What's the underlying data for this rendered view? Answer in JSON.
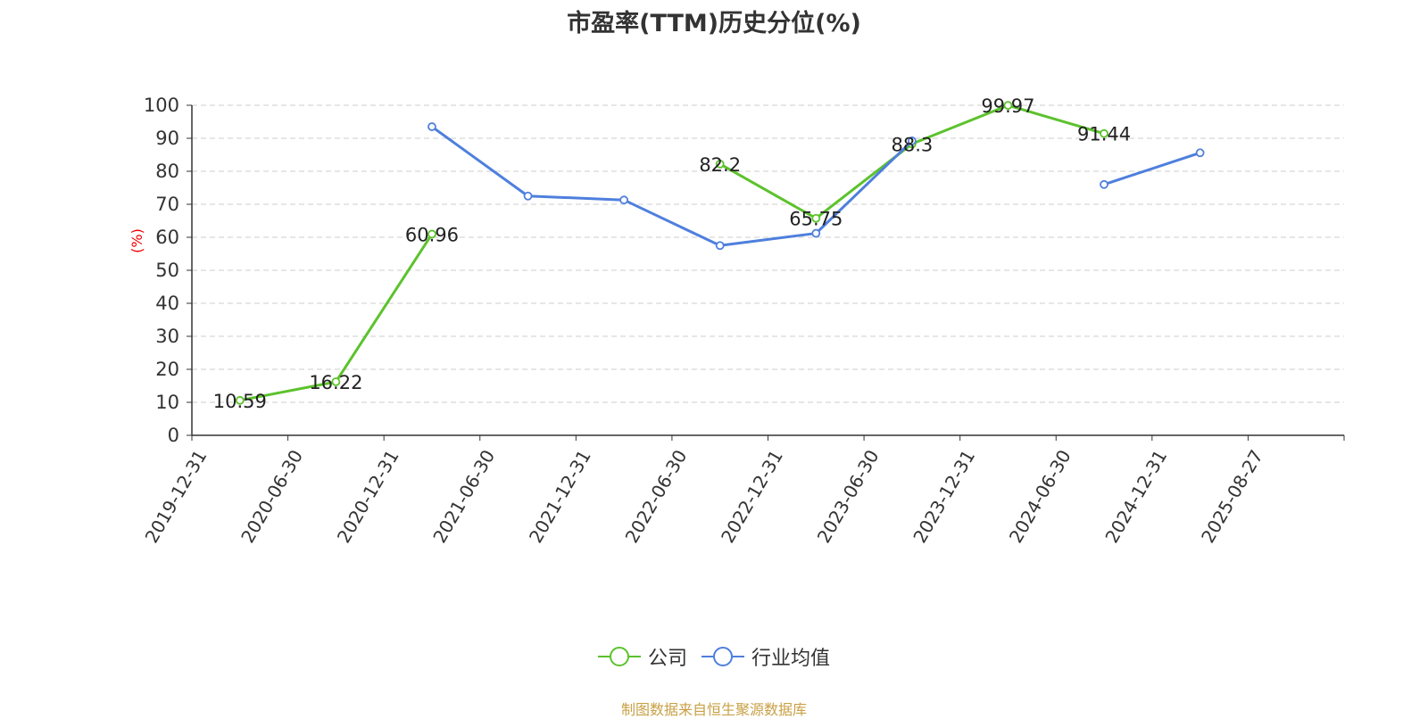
{
  "chart_data": {
    "type": "line",
    "title": "市盈率(TTM)历史分位(%)",
    "ylabel": "(%)",
    "ylim": [
      0,
      100
    ],
    "yticks": [
      0,
      10,
      20,
      30,
      40,
      50,
      60,
      70,
      80,
      90,
      100
    ],
    "categories": [
      "2019-12-31",
      "2020-06-30",
      "2020-12-31",
      "2021-06-30",
      "2021-12-31",
      "2022-06-30",
      "2022-12-31",
      "2023-06-30",
      "2023-12-31",
      "2024-06-30",
      "2024-12-31",
      "2025-08-27"
    ],
    "grid": true,
    "legend_position": "bottom",
    "series": [
      {
        "name": "公司",
        "color": "#5cc22d",
        "show_labels": true,
        "values": [
          10.59,
          16.22,
          60.96,
          null,
          null,
          82.2,
          65.75,
          88.3,
          99.97,
          91.44,
          null,
          null
        ]
      },
      {
        "name": "行业均值",
        "color": "#4e7fdd",
        "show_labels": false,
        "values": [
          null,
          null,
          93.5,
          72.5,
          71.3,
          57.5,
          61.2,
          89.2,
          null,
          76.0,
          85.6,
          null
        ]
      }
    ]
  },
  "source": "制图数据来自恒生聚源数据库"
}
